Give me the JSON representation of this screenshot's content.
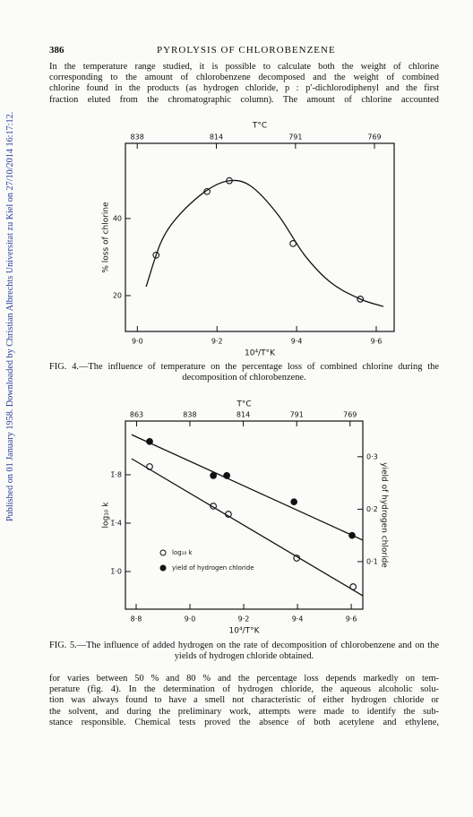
{
  "side_note": "Published on 01 January 1958. Downloaded by Christian Albrechts Universitat zu Kiel on 27/10/2014 16:17:12.",
  "header": {
    "page_number": "386",
    "running_title": "PYROLYSIS OF CHLOROBENZENE"
  },
  "paragraphs": [
    [
      "In the temperature range studied, it is possible to calculate both the weight of chlorine",
      "corresponding to the amount of chlorobenzene decomposed and the weight of combined",
      "chlorine found in the products (as hydrogen chloride, p : p′-dichlorodiphenyl and the first",
      "fraction eluted from the chromatographic column).  The amount of chlorine accounted"
    ],
    [
      "for varies between 50 % and 80 % and the percentage loss depends markedly on tem-",
      "perature (fig. 4).  In the determination of hydrogen chloride, the aqueous alcoholic solu-",
      "tion was always found to have a smell not characteristic of either hydrogen chloride or",
      "the solvent, and during the preliminary work, attempts were made to identify the sub-",
      "stance responsible.  Chemical tests proved the absence of both acetylene and ethylene,"
    ]
  ],
  "chart_data": [
    {
      "type": "scatter",
      "caption": "FIG. 4.—The influence of temperature on the percentage loss of combined chlorine during the decomposition of chlorobenzene.",
      "x_label": "10⁴/T°K",
      "y_label": "% loss of chlorine",
      "x2_label": "T°C",
      "x2_scale": "inverse-kelvin",
      "xlim": [
        8.97,
        9.645
      ],
      "ylim": [
        10.7,
        59.5
      ],
      "xticks": [
        {
          "value": 9.0,
          "label": "9·0"
        },
        {
          "value": 9.2,
          "label": "9·2"
        },
        {
          "value": 9.4,
          "label": "9·4"
        },
        {
          "value": 9.6,
          "label": "9·6"
        }
      ],
      "yticks": [
        20,
        40
      ],
      "x2ticks": [
        838,
        814,
        791,
        769
      ],
      "series": [
        {
          "style": "open-circle",
          "color": "#111111",
          "x": [
            9.047,
            9.175,
            9.231,
            9.391,
            9.56
          ],
          "values": [
            30.5,
            47.0,
            49.8,
            33.5,
            19.1
          ]
        },
        {
          "style": "line",
          "color": "#111111",
          "x": [
            9.022,
            9.06,
            9.106,
            9.173,
            9.231,
            9.285,
            9.353,
            9.42,
            9.487,
            9.56,
            9.618
          ],
          "values": [
            22.3,
            34,
            41,
            47.2,
            49.8,
            48.4,
            41,
            30.5,
            23.3,
            19.1,
            17.2
          ]
        }
      ]
    },
    {
      "type": "scatter",
      "caption": "FIG. 5.—The influence of added hydrogen on the rate of decomposition of chlorobenzene and on the yields of hydrogen chloride obtained.",
      "x_label": "10⁴/T°K",
      "y_label": "log₁₀ k",
      "y2_label": "yield of hydrogen chloride",
      "x2_label": "T°C",
      "x2_scale": "inverse-kelvin",
      "xlim": [
        8.76,
        9.643
      ],
      "ylim": [
        -1.311,
        0.244
      ],
      "y2lim": [
        0.0094,
        0.368
      ],
      "xticks": [
        {
          "value": 8.8,
          "label": "8·8"
        },
        {
          "value": 9.0,
          "label": "9·0"
        },
        {
          "value": 9.2,
          "label": "9·2"
        },
        {
          "value": 9.4,
          "label": "9·4"
        },
        {
          "value": 9.6,
          "label": "9·6"
        }
      ],
      "yticks": [
        {
          "value": -0.2,
          "label": "1̄·8"
        },
        {
          "value": -0.6,
          "label": "1̄·4"
        },
        {
          "value": -1.0,
          "label": "1̄·0"
        }
      ],
      "y2ticks": [
        {
          "value": 0.3,
          "label": "0·3"
        },
        {
          "value": 0.2,
          "label": "0·2"
        },
        {
          "value": 0.1,
          "label": "0·1"
        }
      ],
      "x2ticks": [
        863,
        838,
        814,
        791,
        769
      ],
      "series": [
        {
          "name": "log₁₀ k",
          "style": "open-circle",
          "color": "#111111",
          "x": [
            8.85,
            9.087,
            9.143,
            9.397,
            9.607
          ],
          "values": [
            -0.133,
            -0.459,
            -0.526,
            -0.889,
            -1.126
          ]
        },
        {
          "style": "line",
          "color": "#111111",
          "x": [
            8.783,
            9.643
          ],
          "values": [
            -0.067,
            -1.2
          ]
        },
        {
          "name": "yield of hydrogen chloride",
          "style": "filled-circle",
          "color": "#111111",
          "axis": "y2",
          "x": [
            8.85,
            9.087,
            9.137,
            9.387,
            9.603
          ],
          "values": [
            0.329,
            0.264,
            0.264,
            0.214,
            0.15
          ]
        },
        {
          "style": "line",
          "color": "#111111",
          "axis": "y2",
          "x": [
            8.783,
            9.643
          ],
          "values": [
            0.342,
            0.141
          ]
        }
      ]
    }
  ]
}
